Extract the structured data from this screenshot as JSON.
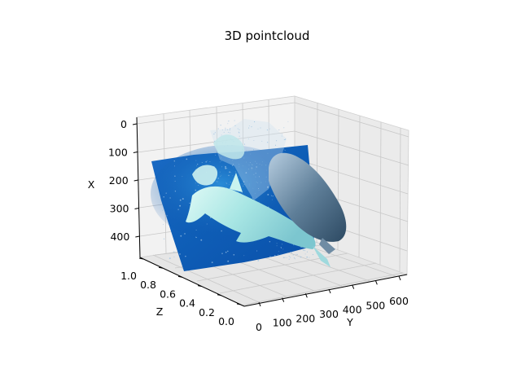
{
  "chart_data": {
    "type": "scatter",
    "projection": "3d",
    "title": "3D pointcloud",
    "xlabel": "Y",
    "ylabel": "X",
    "zlabel": "Z",
    "x_axis": {
      "label": "Y",
      "range": [
        0,
        640
      ],
      "ticks": [
        "0",
        "100",
        "200",
        "300",
        "400",
        "500",
        "600"
      ]
    },
    "y_axis": {
      "label": "X",
      "range": [
        0,
        480
      ],
      "ticks": [
        "0",
        "100",
        "200",
        "300",
        "400"
      ]
    },
    "z_axis": {
      "label": "Z",
      "range": [
        0.0,
        1.0
      ],
      "ticks": [
        "0.0",
        "0.2",
        "0.4",
        "0.6",
        "0.8",
        "1.0"
      ]
    },
    "grid": true,
    "panes": "light-gray",
    "surface_colors": {
      "water_deep": "#0a52b0",
      "water_mid": "#1677cc",
      "water_light": "#3aa0e0",
      "shark_light": "#bff0ee",
      "shark_dark": "#3a5670",
      "scatter_dots": "#9ec4e6"
    }
  }
}
